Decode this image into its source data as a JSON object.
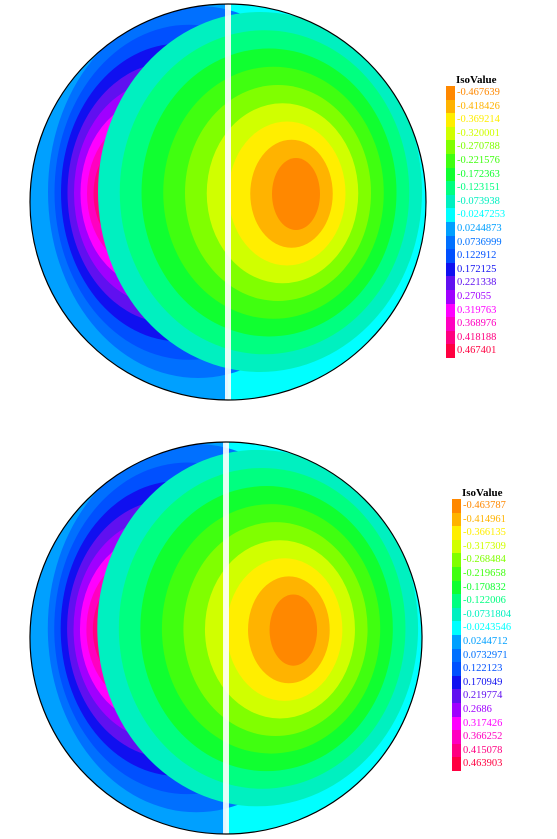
{
  "palette": [
    "#ff8800",
    "#ffb300",
    "#ffee00",
    "#d0ff00",
    "#80ff00",
    "#40ff10",
    "#10ff30",
    "#00ff80",
    "#00f0c0",
    "#00ffff",
    "#00a0ff",
    "#0070ff",
    "#0050ff",
    "#1010f0",
    "#6010f0",
    "#a000ff",
    "#ff00ff",
    "#ff00c0",
    "#ff0080",
    "#ff0040"
  ],
  "plots": [
    {
      "legend": {
        "title": "IsoValue",
        "values": [
          "-0.467639",
          "-0.418426",
          "-0.369214",
          "-0.320001",
          "-0.270788",
          "-0.221576",
          "-0.172363",
          "-0.123151",
          "-0.073938",
          "-0.0247253",
          "0.0244873",
          "0.0736999",
          "0.122912",
          "0.172125",
          "0.221338",
          "0.27055",
          "0.319763",
          "0.368976",
          "0.418188",
          "0.467401"
        ]
      }
    },
    {
      "legend": {
        "title": "IsoValue",
        "values": [
          "-0.463787",
          "-0.414961",
          "-0.366135",
          "-0.317309",
          "-0.268484",
          "-0.219658",
          "-0.170832",
          "-0.122006",
          "-0.0731804",
          "-0.0243546",
          "0.0244712",
          "0.0732971",
          "0.122123",
          "0.170949",
          "0.219774",
          "0.2686",
          "0.317426",
          "0.366252",
          "0.415078",
          "0.463903"
        ]
      }
    }
  ]
}
